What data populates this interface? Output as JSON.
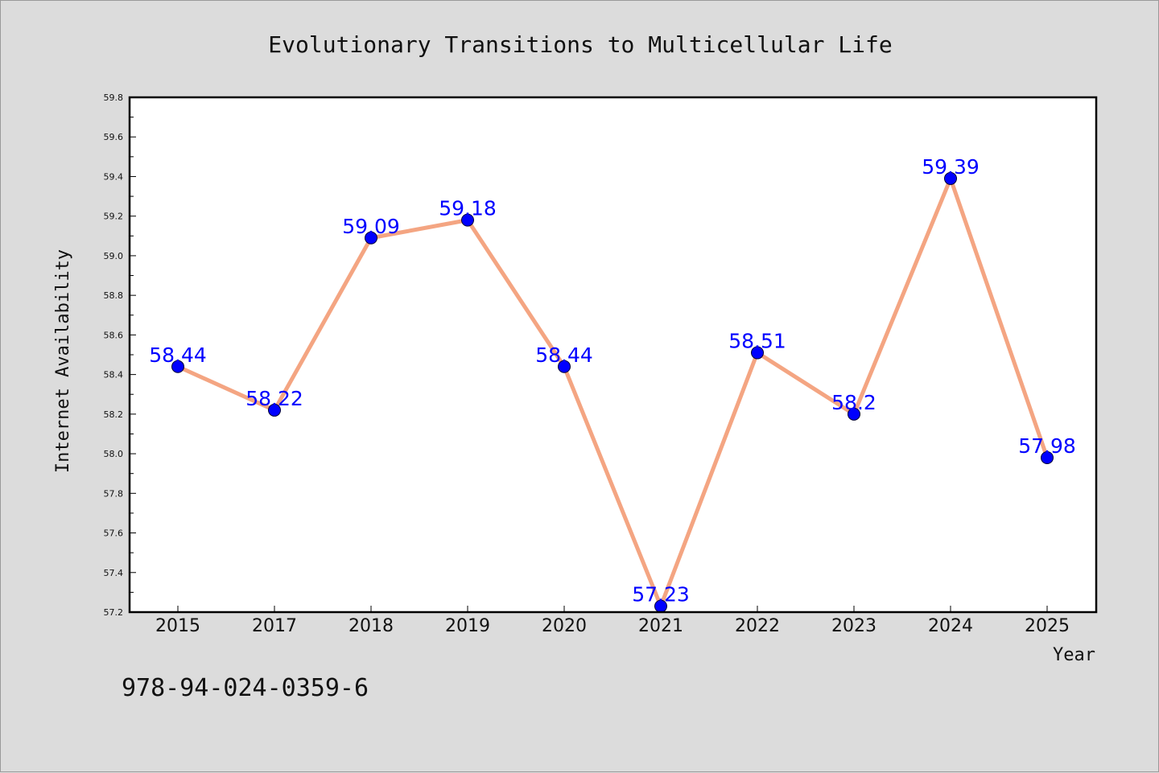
{
  "chart_data": {
    "type": "line",
    "title": "Evolutionary Transitions to Multicellular Life",
    "xlabel": "Year",
    "ylabel": "Internet Availability",
    "categories": [
      "2015",
      "2017",
      "2018",
      "2019",
      "2020",
      "2021",
      "2022",
      "2023",
      "2024",
      "2025"
    ],
    "values": [
      58.44,
      58.22,
      59.09,
      59.18,
      58.44,
      57.23,
      58.51,
      58.2,
      59.39,
      57.98
    ],
    "data_labels": [
      "58.44",
      "58.22",
      "59.09",
      "59.18",
      "58.44",
      "57.23",
      "58.51",
      "58.2",
      "59.39",
      "57.98"
    ],
    "ylim": [
      57.2,
      59.8
    ],
    "yticks": [
      "57.2",
      "57.4",
      "57.6",
      "57.8",
      "58.0",
      "58.2",
      "58.4",
      "58.6",
      "58.8",
      "59.0",
      "59.2",
      "59.4",
      "59.6",
      "59.8"
    ],
    "grid": false,
    "legend": "none",
    "line_color": "#f4a582",
    "marker_color": "#0000ff",
    "label_color": "#0000ff"
  },
  "footer": {
    "isbn": "978-94-024-0359-6"
  }
}
